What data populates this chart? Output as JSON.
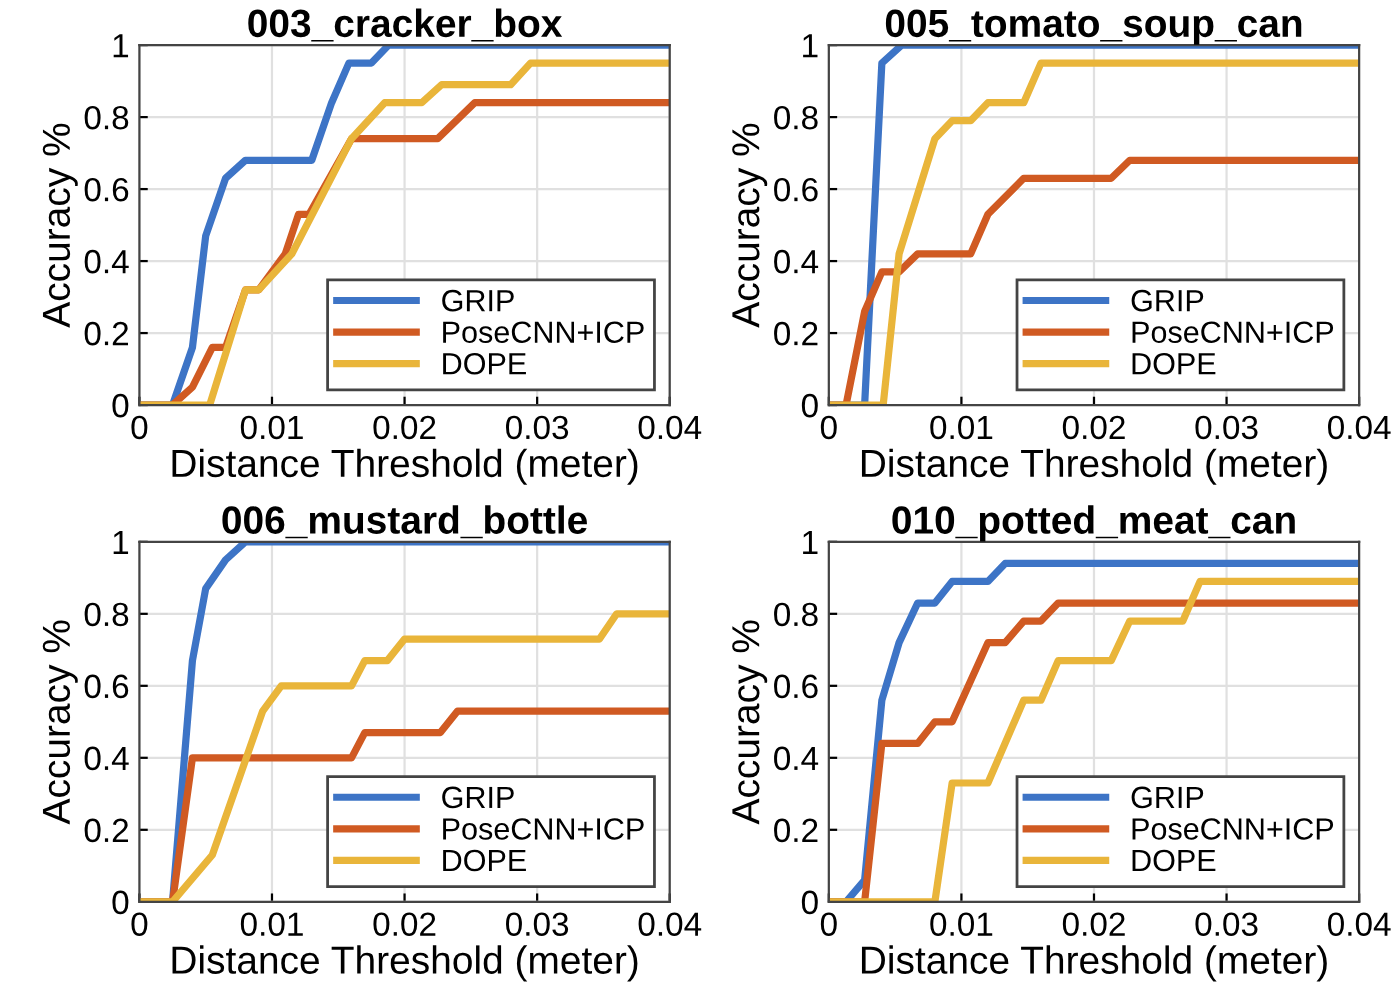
{
  "chart_data": [
    {
      "type": "line",
      "title": "003_cracker_box",
      "xlabel": "Distance Threshold (meter)",
      "ylabel": "Accuracy %",
      "xlim": [
        0,
        0.04
      ],
      "ylim": [
        0,
        1
      ],
      "xticks": [
        0,
        0.01,
        0.02,
        0.03,
        0.04
      ],
      "yticks": [
        0,
        0.2,
        0.4,
        0.6,
        0.8,
        1
      ],
      "grid": true,
      "legend": "bottom right",
      "line_style": "solid",
      "series": [
        {
          "name": "GRIP",
          "color": "#3d74c6",
          "x": [
            0,
            0.0025,
            0.004,
            0.005,
            0.0065,
            0.008,
            0.013,
            0.0145,
            0.0158,
            0.0175,
            0.0188,
            0.04
          ],
          "values": [
            0,
            0,
            0.16,
            0.47,
            0.63,
            0.68,
            0.68,
            0.84,
            0.95,
            0.95,
            1,
            1
          ]
        },
        {
          "name": "PoseCNN+ICP",
          "color": "#d05a22",
          "x": [
            0,
            0.0025,
            0.004,
            0.0055,
            0.0065,
            0.008,
            0.009,
            0.011,
            0.012,
            0.0128,
            0.016,
            0.0225,
            0.0253,
            0.04
          ],
          "values": [
            0,
            0,
            0.05,
            0.16,
            0.16,
            0.32,
            0.32,
            0.42,
            0.53,
            0.53,
            0.74,
            0.74,
            0.84,
            0.84
          ]
        },
        {
          "name": "DOPE",
          "color": "#e9b53a",
          "x": [
            0,
            0.0053,
            0.008,
            0.009,
            0.0115,
            0.016,
            0.0185,
            0.0213,
            0.0228,
            0.028,
            0.0295,
            0.04
          ],
          "values": [
            0,
            0,
            0.32,
            0.32,
            0.42,
            0.74,
            0.84,
            0.84,
            0.89,
            0.89,
            0.95,
            0.95
          ]
        }
      ]
    },
    {
      "type": "line",
      "title": "005_tomato_soup_can",
      "xlabel": "Distance Threshold (meter)",
      "ylabel": "Accuracy %",
      "xlim": [
        0,
        0.04
      ],
      "ylim": [
        0,
        1
      ],
      "xticks": [
        0,
        0.01,
        0.02,
        0.03,
        0.04
      ],
      "yticks": [
        0,
        0.2,
        0.4,
        0.6,
        0.8,
        1
      ],
      "grid": true,
      "legend": "bottom right",
      "line_style": "solid",
      "series": [
        {
          "name": "GRIP",
          "color": "#3d74c6",
          "x": [
            0,
            0.0027,
            0.004,
            0.0055,
            0.04
          ],
          "values": [
            0,
            0,
            0.95,
            1,
            1
          ]
        },
        {
          "name": "PoseCNN+ICP",
          "color": "#d05a22",
          "x": [
            0,
            0.0013,
            0.0027,
            0.004,
            0.0053,
            0.0067,
            0.0107,
            0.012,
            0.0147,
            0.0213,
            0.0227,
            0.04
          ],
          "values": [
            0,
            0,
            0.26,
            0.37,
            0.37,
            0.42,
            0.42,
            0.53,
            0.63,
            0.63,
            0.68,
            0.68
          ]
        },
        {
          "name": "DOPE",
          "color": "#e9b53a",
          "x": [
            0,
            0.0041,
            0.0053,
            0.008,
            0.0093,
            0.0107,
            0.012,
            0.0147,
            0.016,
            0.04
          ],
          "values": [
            0,
            0,
            0.42,
            0.74,
            0.79,
            0.79,
            0.84,
            0.84,
            0.95,
            0.95
          ]
        }
      ]
    },
    {
      "type": "line",
      "title": "006_mustard_bottle",
      "xlabel": "Distance Threshold (meter)",
      "ylabel": "Accuracy %",
      "xlim": [
        0,
        0.04
      ],
      "ylim": [
        0,
        1
      ],
      "xticks": [
        0,
        0.01,
        0.02,
        0.03,
        0.04
      ],
      "yticks": [
        0,
        0.2,
        0.4,
        0.6,
        0.8,
        1
      ],
      "grid": true,
      "legend": "bottom right",
      "line_style": "solid",
      "series": [
        {
          "name": "GRIP",
          "color": "#3d74c6",
          "x": [
            0,
            0.0025,
            0.004,
            0.005,
            0.0065,
            0.008,
            0.04
          ],
          "values": [
            0,
            0,
            0.67,
            0.87,
            0.95,
            1,
            1
          ]
        },
        {
          "name": "PoseCNN+ICP",
          "color": "#d05a22",
          "x": [
            0,
            0.0025,
            0.004,
            0.016,
            0.017,
            0.0227,
            0.024,
            0.04
          ],
          "values": [
            0,
            0,
            0.4,
            0.4,
            0.47,
            0.47,
            0.53,
            0.53
          ]
        },
        {
          "name": "DOPE",
          "color": "#e9b53a",
          "x": [
            0,
            0.0025,
            0.0055,
            0.0093,
            0.0107,
            0.016,
            0.017,
            0.0187,
            0.02,
            0.0347,
            0.036,
            0.04
          ],
          "values": [
            0,
            0,
            0.13,
            0.53,
            0.6,
            0.6,
            0.67,
            0.67,
            0.73,
            0.73,
            0.8,
            0.8
          ]
        }
      ]
    },
    {
      "type": "line",
      "title": "010_potted_meat_can",
      "xlabel": "Distance Threshold (meter)",
      "ylabel": "Accuracy %",
      "xlim": [
        0,
        0.04
      ],
      "ylim": [
        0,
        1
      ],
      "xticks": [
        0,
        0.01,
        0.02,
        0.03,
        0.04
      ],
      "yticks": [
        0,
        0.2,
        0.4,
        0.6,
        0.8,
        1
      ],
      "grid": true,
      "legend": "bottom right",
      "line_style": "solid",
      "series": [
        {
          "name": "GRIP",
          "color": "#3d74c6",
          "x": [
            0,
            0.0013,
            0.0027,
            0.004,
            0.0053,
            0.0067,
            0.008,
            0.0093,
            0.012,
            0.0133,
            0.04
          ],
          "values": [
            0,
            0,
            0.06,
            0.56,
            0.72,
            0.83,
            0.83,
            0.89,
            0.89,
            0.94,
            0.94
          ]
        },
        {
          "name": "PoseCNN+ICP",
          "color": "#d05a22",
          "x": [
            0,
            0.0027,
            0.004,
            0.0067,
            0.008,
            0.0093,
            0.012,
            0.0133,
            0.0147,
            0.016,
            0.0173,
            0.04
          ],
          "values": [
            0,
            0,
            0.44,
            0.44,
            0.5,
            0.5,
            0.72,
            0.72,
            0.78,
            0.78,
            0.83,
            0.83
          ]
        },
        {
          "name": "DOPE",
          "color": "#e9b53a",
          "x": [
            0,
            0.008,
            0.0093,
            0.012,
            0.0147,
            0.016,
            0.0173,
            0.0213,
            0.0227,
            0.0267,
            0.028,
            0.04
          ],
          "values": [
            0,
            0,
            0.33,
            0.33,
            0.56,
            0.56,
            0.67,
            0.67,
            0.78,
            0.78,
            0.89,
            0.89
          ]
        }
      ]
    }
  ]
}
